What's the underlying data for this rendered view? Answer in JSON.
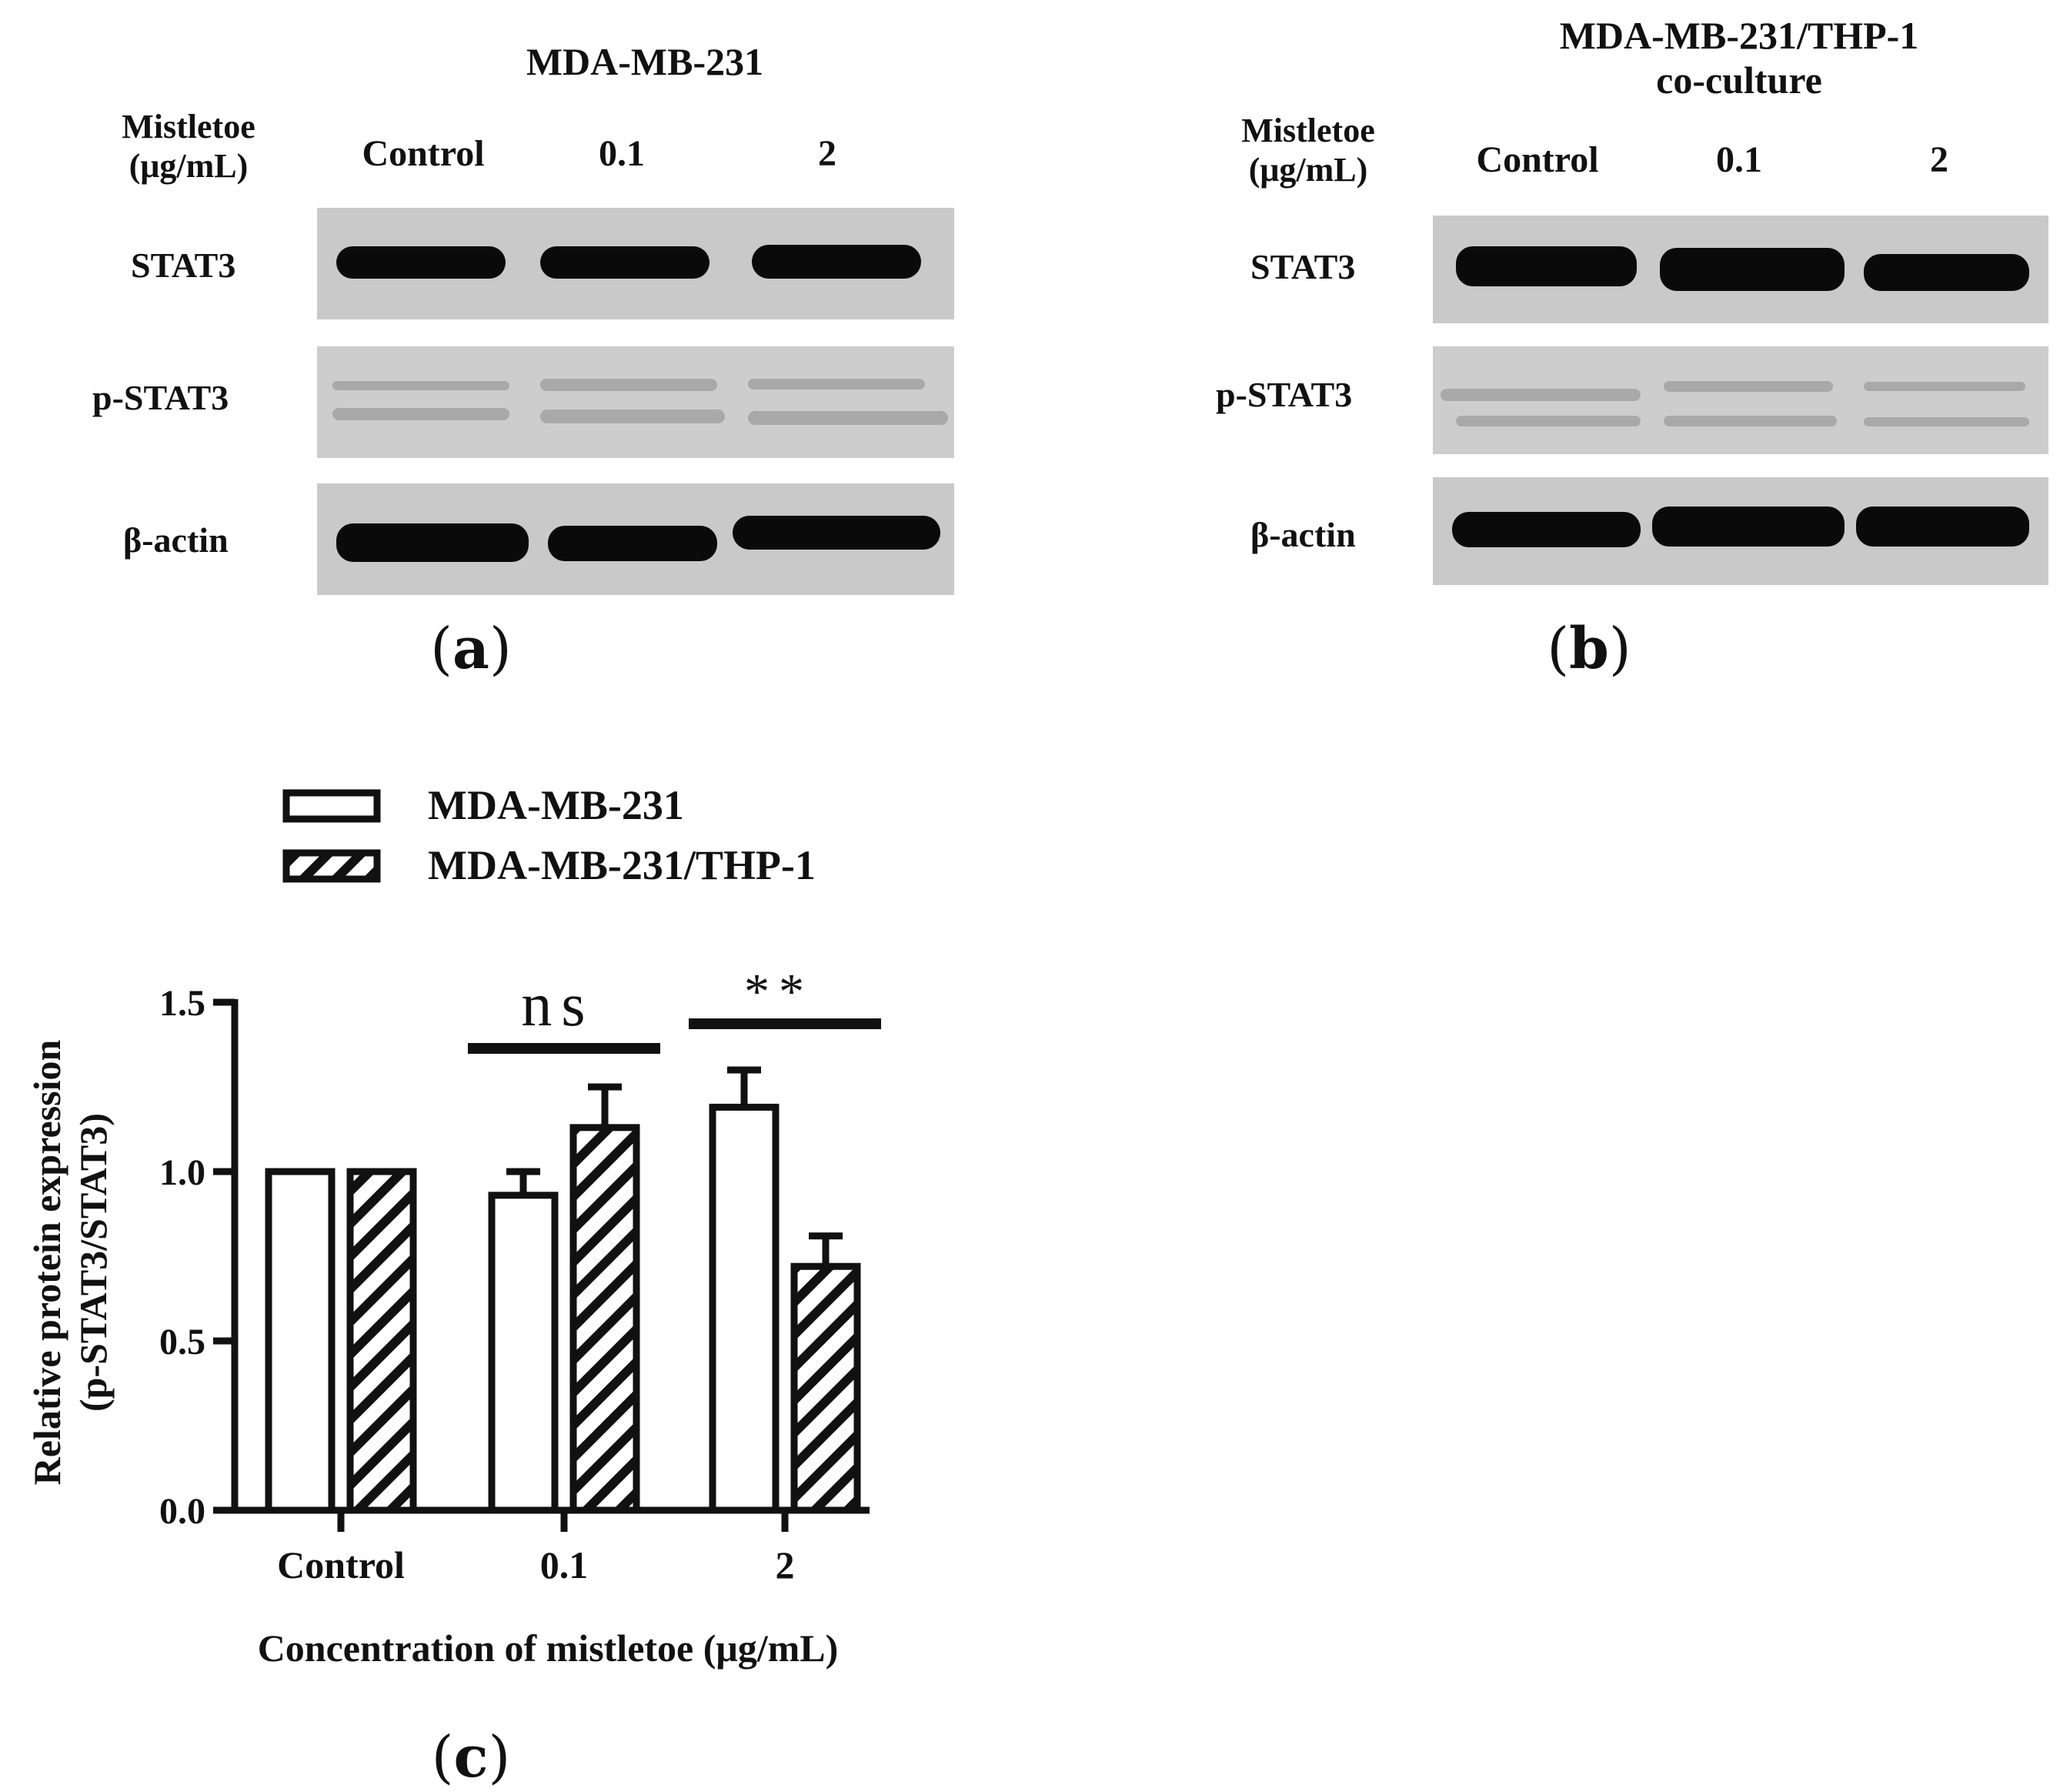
{
  "blots": [
    {
      "title_lines": [
        "MDA-MB-231"
      ],
      "condition_label": [
        "Mistletoe",
        "(μg/mL)"
      ],
      "columns": [
        "Control",
        "0.1",
        "2"
      ],
      "rows": [
        "STAT3",
        "p-STAT3",
        "β-actin"
      ],
      "panel_letter": "a"
    },
    {
      "title_lines": [
        "MDA-MB-231/THP-1",
        "co-culture"
      ],
      "condition_label": [
        "Mistletoe",
        "(μg/mL)"
      ],
      "columns": [
        "Control",
        "0.1",
        "2"
      ],
      "rows": [
        "STAT3",
        "p-STAT3",
        "β-actin"
      ],
      "panel_letter": "b"
    }
  ],
  "chart_panel_letter": "c",
  "chart_data": {
    "type": "bar",
    "categories": [
      "Control",
      "0.1",
      "2"
    ],
    "series": [
      {
        "name": "MDA-MB-231",
        "pattern": "open",
        "values": [
          1.0,
          0.93,
          1.19
        ],
        "errors": [
          0.0,
          0.07,
          0.11
        ]
      },
      {
        "name": "MDA-MB-231/THP-1",
        "pattern": "hatched",
        "values": [
          1.0,
          1.13,
          0.72
        ],
        "errors": [
          0.0,
          0.12,
          0.09
        ]
      }
    ],
    "xlabel": "Concentration of mistletoe (μg/mL)",
    "ylabel_lines": [
      "Relative protein expression",
      "(p-STAT3/STAT3)"
    ],
    "ylim": [
      0,
      1.5
    ],
    "yticks": [
      "0.0",
      "0.5",
      "1.0",
      "1.5"
    ],
    "legend_position": "top-left",
    "significance": [
      {
        "category_index": 1,
        "label": "ns"
      },
      {
        "category_index": 2,
        "label": "**"
      }
    ],
    "grid": false
  }
}
